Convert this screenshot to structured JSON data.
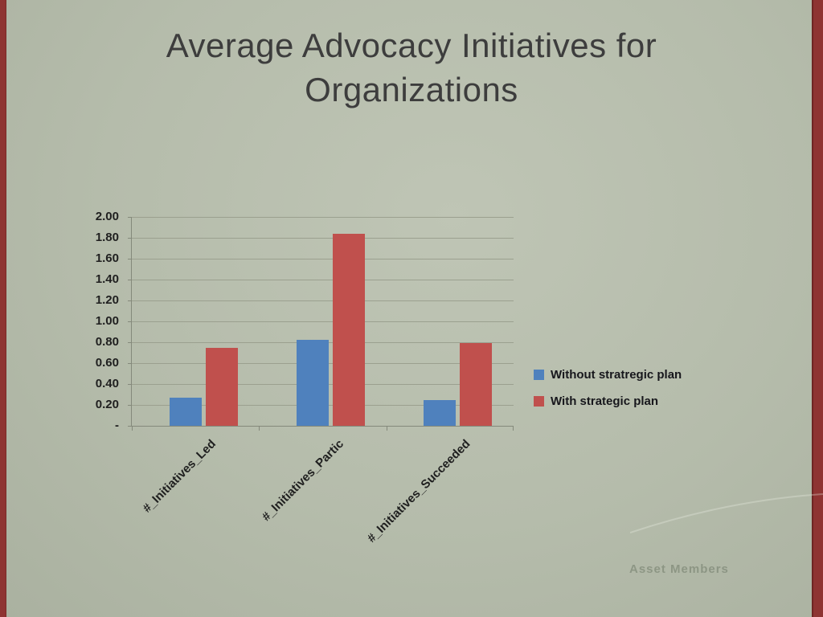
{
  "slide": {
    "title_line1": "Average Advocacy Initiatives for",
    "title_line2": "Organizations",
    "watermark": "Asset Members",
    "accent_border_color": "#8e3432",
    "background_color": "#b6bcab"
  },
  "chart_data": {
    "type": "bar",
    "title": "Average Advocacy Initiatives for Organizations",
    "categories": [
      "#_Initiatives_Led",
      "#_Initiatives_Partic",
      "#_Initiatives_Succeeded"
    ],
    "series": [
      {
        "name": "Without stratregic plan",
        "color": "#4f81bd",
        "values": [
          0.27,
          0.82,
          0.25
        ]
      },
      {
        "name": "With strategic plan",
        "color": "#c0504d",
        "values": [
          0.75,
          1.84,
          0.79
        ]
      }
    ],
    "ylim": [
      0,
      2.0
    ],
    "ytick_step": 0.2,
    "ytick_labels": [
      "2.00",
      "1.80",
      "1.60",
      "1.40",
      "1.20",
      "1.00",
      "0.80",
      "0.60",
      "0.40",
      "0.20",
      "-"
    ],
    "grid": true,
    "legend_position": "right"
  }
}
